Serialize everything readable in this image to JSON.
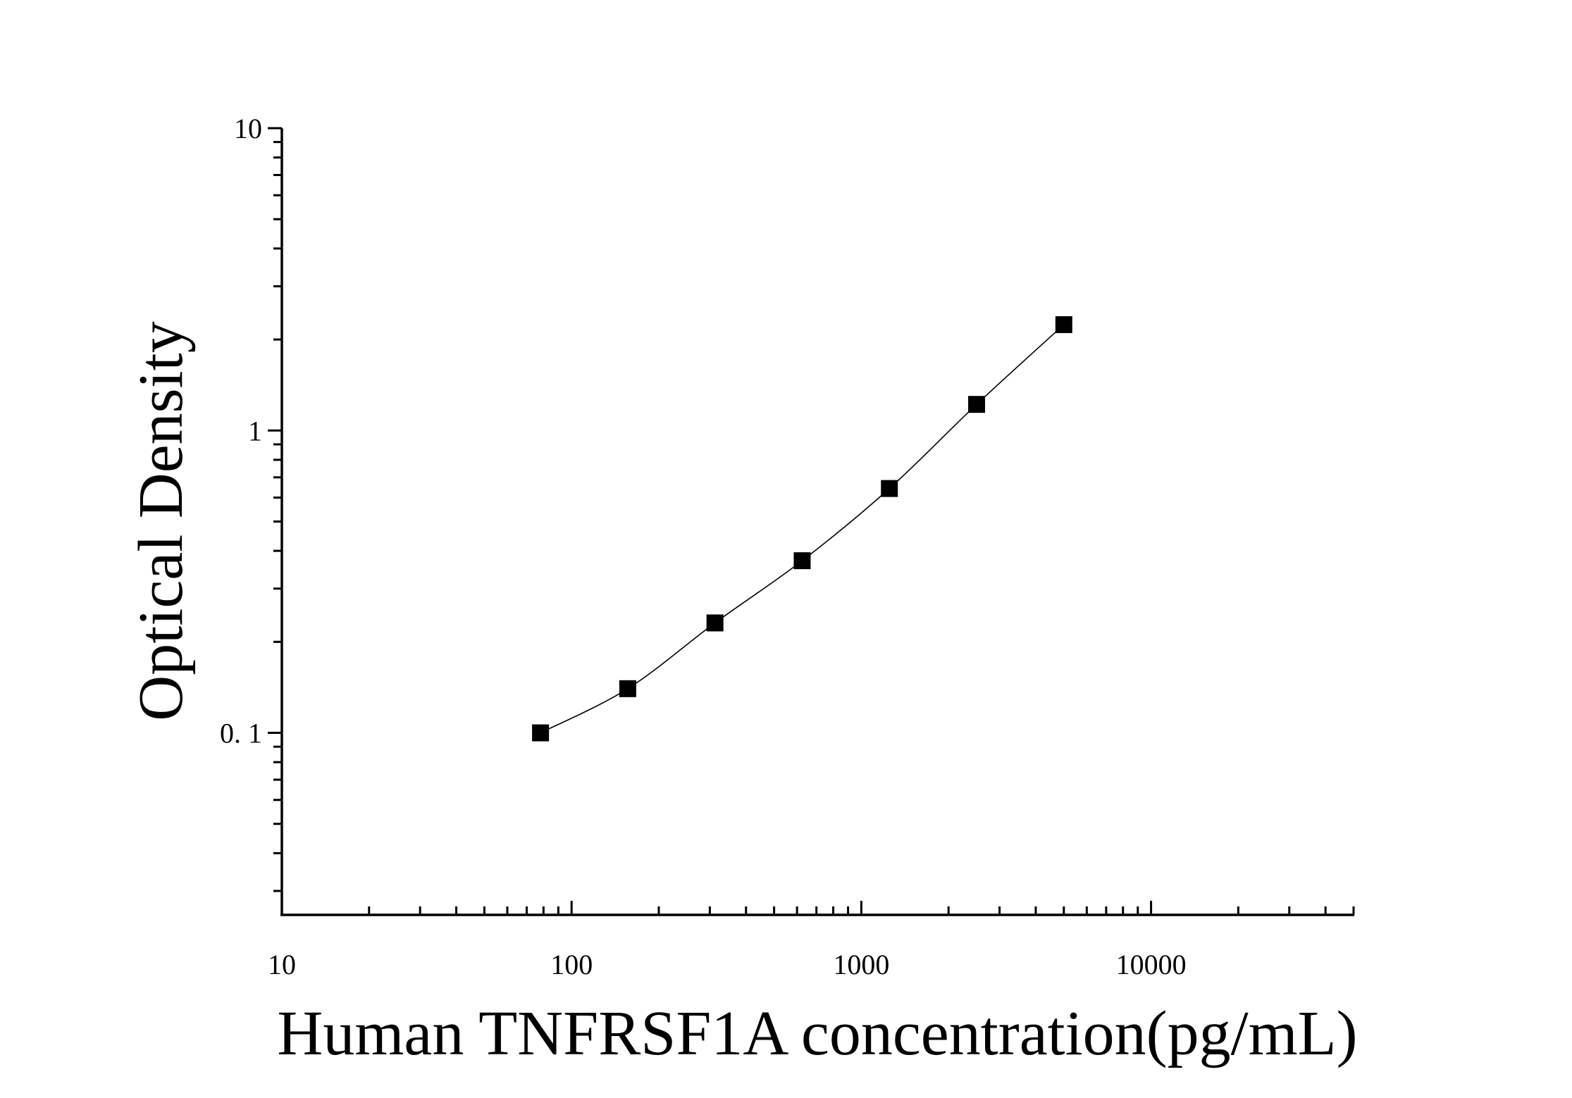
{
  "chart_data": {
    "type": "scatter",
    "title": "",
    "xlabel": "Human TNFRSF1A concentration(pg/mL)",
    "ylabel": "Optical Density",
    "x_scale": "log",
    "y_scale": "log",
    "xlim": [
      10,
      50000
    ],
    "ylim": [
      0.025,
      10
    ],
    "x_ticks": [
      10,
      100,
      1000,
      10000
    ],
    "x_tick_labels": [
      "10",
      "100",
      "1000",
      "10000"
    ],
    "y_ticks": [
      0.1,
      1,
      10
    ],
    "y_tick_labels": [
      "0. 1",
      "1",
      "10"
    ],
    "grid": false,
    "legend": "none",
    "marker": "square",
    "fit_line": true,
    "colors": {
      "marker": "#000000",
      "line": "#000000"
    },
    "series": [
      {
        "x": [
          78.125,
          156.25,
          312.5,
          625,
          1250,
          2500,
          5000
        ],
        "y": [
          0.1,
          0.14,
          0.231,
          0.371,
          0.643,
          1.22,
          2.24
        ]
      }
    ]
  }
}
